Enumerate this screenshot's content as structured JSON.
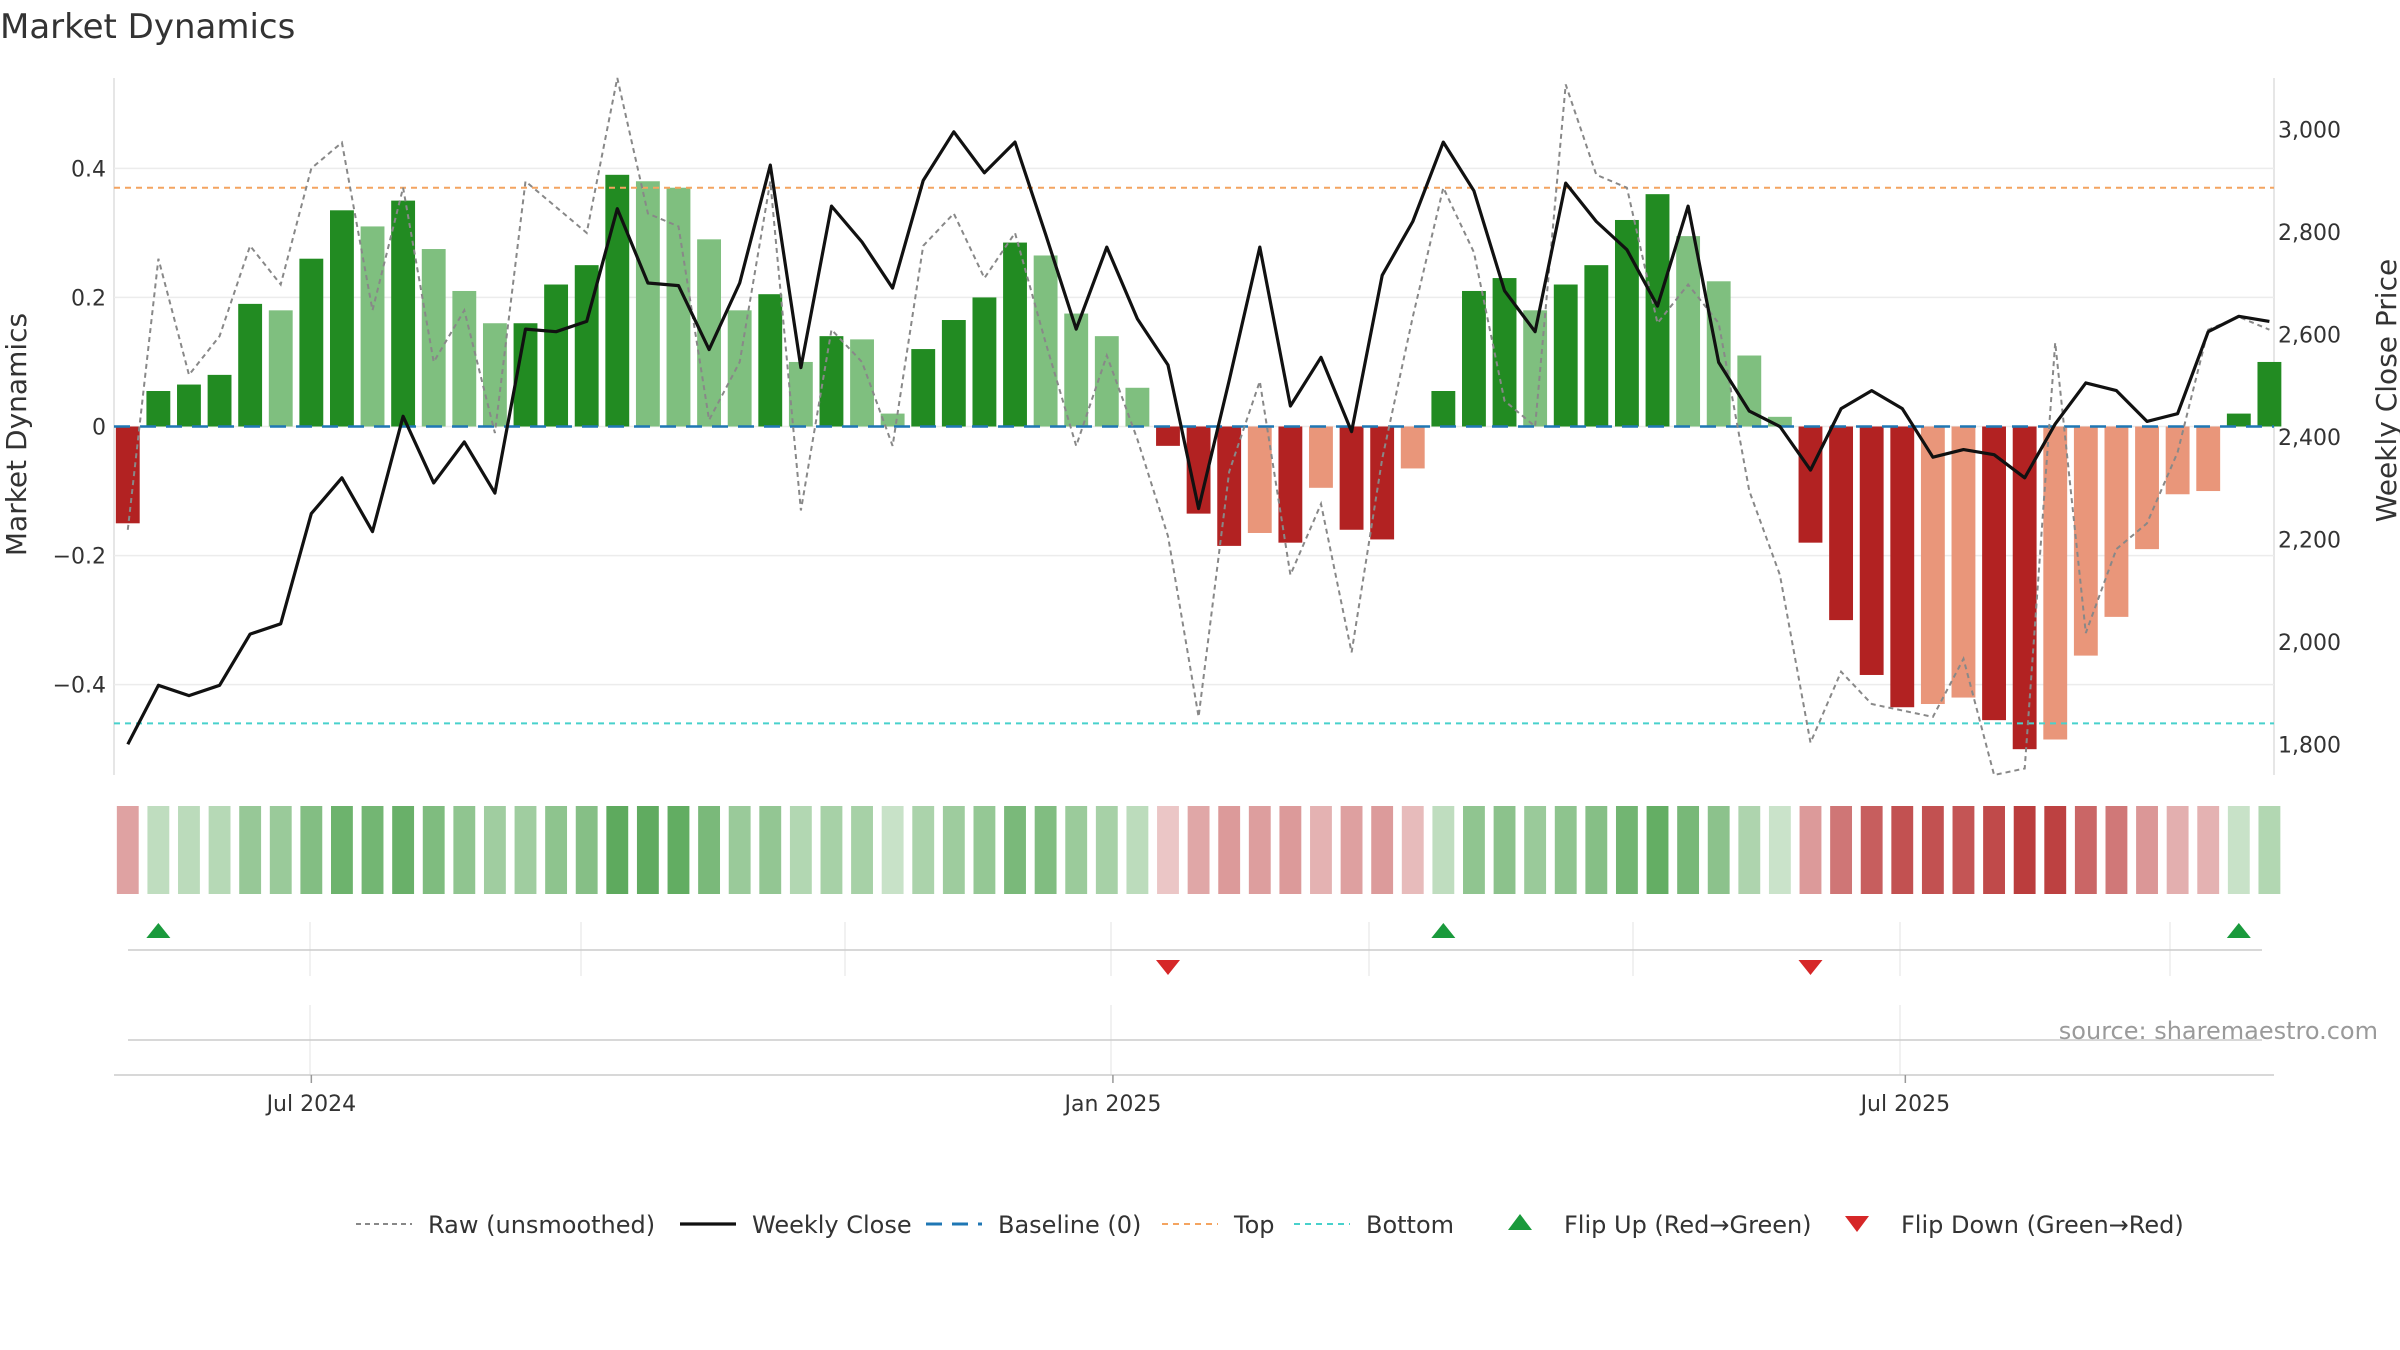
{
  "title": "Market Dynamics",
  "source": "source: sharemaestro.com",
  "chart_data": {
    "type": "bar",
    "title": "Market Dynamics",
    "ylabel": "Market Dynamics",
    "y2label": "Weekly Close Price",
    "ylim": [
      -0.54,
      0.54
    ],
    "y2lim": [
      1740,
      3100
    ],
    "yticks": [
      "0.4",
      "0.2",
      "0",
      "−0.2",
      "−0.4"
    ],
    "yticks_values": [
      0.4,
      0.2,
      0,
      -0.2,
      -0.4
    ],
    "y2ticks": [
      "3,000",
      "2,800",
      "2,600",
      "2,400",
      "2,200",
      "2,000",
      "1,800"
    ],
    "y2ticks_values": [
      3000,
      2800,
      2600,
      2400,
      2200,
      2000,
      1800
    ],
    "xticks": [
      {
        "label": "Jul 2024",
        "index": 6
      },
      {
        "label": "Jan 2025",
        "index": 32.2
      },
      {
        "label": "Jul 2025",
        "index": 58.1
      }
    ],
    "top": 0.37,
    "bottom": -0.46,
    "baseline": 0,
    "colors": {
      "pos_strong": "#228b22",
      "pos_weak": "#7fbf7f",
      "neg_strong": "#b22222",
      "neg_weak": "#e9967a",
      "raw": "#888888",
      "close": "#111111",
      "baseline": "#1f77b4",
      "top": "#f4a460",
      "bottom": "#48d1cc",
      "flip_up": "#1a9a3c",
      "flip_down": "#d62728"
    },
    "dynamics": [
      -0.15,
      0.055,
      0.065,
      0.08,
      0.19,
      0.18,
      0.26,
      0.335,
      0.31,
      0.35,
      0.275,
      0.21,
      0.16,
      0.16,
      0.22,
      0.25,
      0.39,
      0.38,
      0.37,
      0.29,
      0.18,
      0.205,
      0.1,
      0.14,
      0.135,
      0.02,
      0.12,
      0.165,
      0.2,
      0.285,
      0.265,
      0.175,
      0.14,
      0.06,
      -0.03,
      -0.135,
      -0.185,
      -0.165,
      -0.18,
      -0.095,
      -0.16,
      -0.175,
      -0.065,
      0.055,
      0.21,
      0.23,
      0.18,
      0.22,
      0.25,
      0.32,
      0.36,
      0.295,
      0.225,
      0.11,
      0.015,
      -0.18,
      -0.3,
      -0.385,
      -0.435,
      -0.43,
      -0.42,
      -0.455,
      -0.5,
      -0.485,
      -0.355,
      -0.295,
      -0.19,
      -0.105,
      -0.1,
      0.02,
      0.1
    ],
    "strength": [
      "s",
      "s",
      "s",
      "s",
      "s",
      "w",
      "s",
      "s",
      "w",
      "s",
      "w",
      "w",
      "w",
      "s",
      "s",
      "s",
      "s",
      "w",
      "w",
      "w",
      "w",
      "s",
      "w",
      "s",
      "w",
      "w",
      "s",
      "s",
      "s",
      "s",
      "w",
      "w",
      "w",
      "w",
      "s",
      "s",
      "s",
      "w",
      "s",
      "w",
      "s",
      "s",
      "w",
      "s",
      "s",
      "s",
      "w",
      "s",
      "s",
      "s",
      "s",
      "w",
      "w",
      "w",
      "w",
      "s",
      "s",
      "s",
      "s",
      "w",
      "w",
      "s",
      "s",
      "w",
      "w",
      "w",
      "w",
      "w",
      "w",
      "s",
      "s"
    ],
    "raw": [
      -0.16,
      0.26,
      0.08,
      0.14,
      0.28,
      0.22,
      0.4,
      0.44,
      0.18,
      0.37,
      0.1,
      0.18,
      -0.01,
      0.38,
      0.34,
      0.3,
      0.54,
      0.33,
      0.31,
      0.01,
      0.1,
      0.38,
      -0.13,
      0.15,
      0.1,
      -0.03,
      0.28,
      0.33,
      0.23,
      0.3,
      0.13,
      -0.03,
      0.11,
      -0.02,
      -0.17,
      -0.45,
      -0.07,
      0.07,
      -0.23,
      -0.12,
      -0.35,
      -0.05,
      0.17,
      0.37,
      0.27,
      0.04,
      0.0,
      0.53,
      0.39,
      0.37,
      0.16,
      0.22,
      0.16,
      -0.1,
      -0.23,
      -0.49,
      -0.38,
      -0.43,
      -0.44,
      -0.45,
      -0.36,
      -0.54,
      -0.53,
      0.13,
      -0.32,
      -0.19,
      -0.15,
      -0.04,
      0.15,
      0.17,
      0.15
    ],
    "close": [
      1800,
      1915,
      1895,
      1915,
      2015,
      2035,
      2250,
      2320,
      2215,
      2440,
      2310,
      2390,
      2290,
      2610,
      2605,
      2625,
      2845,
      2700,
      2695,
      2570,
      2700,
      2930,
      2535,
      2850,
      2780,
      2690,
      2900,
      2995,
      2915,
      2975,
      2795,
      2610,
      2770,
      2630,
      2540,
      2260,
      2510,
      2770,
      2460,
      2555,
      2410,
      2715,
      2820,
      2975,
      2880,
      2685,
      2605,
      2895,
      2820,
      2765,
      2655,
      2850,
      2545,
      2450,
      2420,
      2335,
      2455,
      2490,
      2455,
      2360,
      2375,
      2365,
      2320,
      2425,
      2505,
      2490,
      2430,
      2445,
      2605,
      2635,
      2625
    ],
    "flips_up": [
      1,
      43,
      69
    ],
    "flips_down": [
      34,
      55
    ]
  },
  "legend": [
    {
      "label": "Raw (unsmoothed)",
      "style": "raw"
    },
    {
      "label": "Weekly Close",
      "style": "close"
    },
    {
      "label": "Baseline (0)",
      "style": "baseline"
    },
    {
      "label": "Top",
      "style": "top"
    },
    {
      "label": "Bottom",
      "style": "bottom"
    },
    {
      "label": "Flip Up (Red→Green)",
      "style": "flip_up"
    },
    {
      "label": "Flip Down (Green→Red)",
      "style": "flip_down"
    }
  ]
}
